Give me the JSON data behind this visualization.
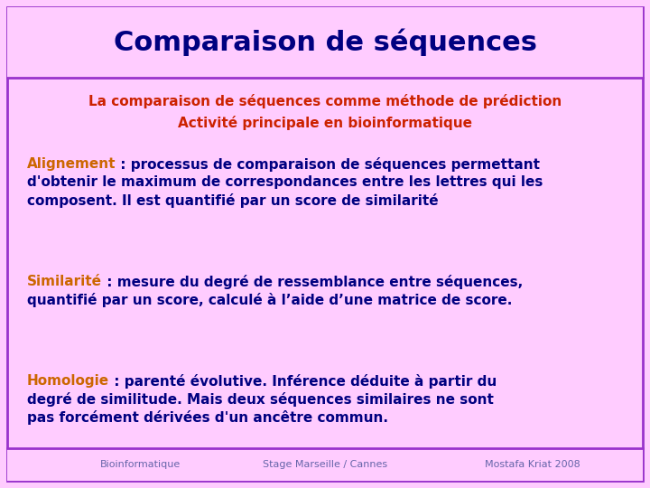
{
  "title": "Comparaison de séquences",
  "title_color": "#000080",
  "title_bg": "#ffccff",
  "body_bg": "#ffccff",
  "border_color": "#9933cc",
  "subtitle_line1": "La comparaison de séquences comme méthode de prédiction",
  "subtitle_line2": "Activité principale en bioinformatique",
  "subtitle_color": "#cc2200",
  "alignement_keyword": "Alignement",
  "alignement_rest": " : processus de comparaison de séquences permettant\nd'obtenir le maximum de correspondances entre les lettres qui les\ncomposent. Il est quantifié par un score de similarité",
  "similarite_keyword": "Similarité",
  "similarite_rest": " : mesure du degré de ressemblance entre séquences,\nquantifié par un score, calculé à l’aide d’une matrice de score.",
  "homologie_keyword": "Homologie",
  "homologie_rest": " : parenté évolutive. Inférence déduite à partir du\ndegré de similitude. Mais deux séquences similaires ne sont\npas forcément dérivées d'un ancêtre commun.",
  "keyword_color": "#cc6600",
  "body_text_color": "#000080",
  "footer_left": "Bioinformatique",
  "footer_center": "Stage Marseille / Cannes",
  "footer_right": "Mostafa Kriat 2008",
  "footer_color": "#6666aa",
  "footer_bg": "#ffccff",
  "figwidth": 7.2,
  "figheight": 5.4,
  "dpi": 100
}
